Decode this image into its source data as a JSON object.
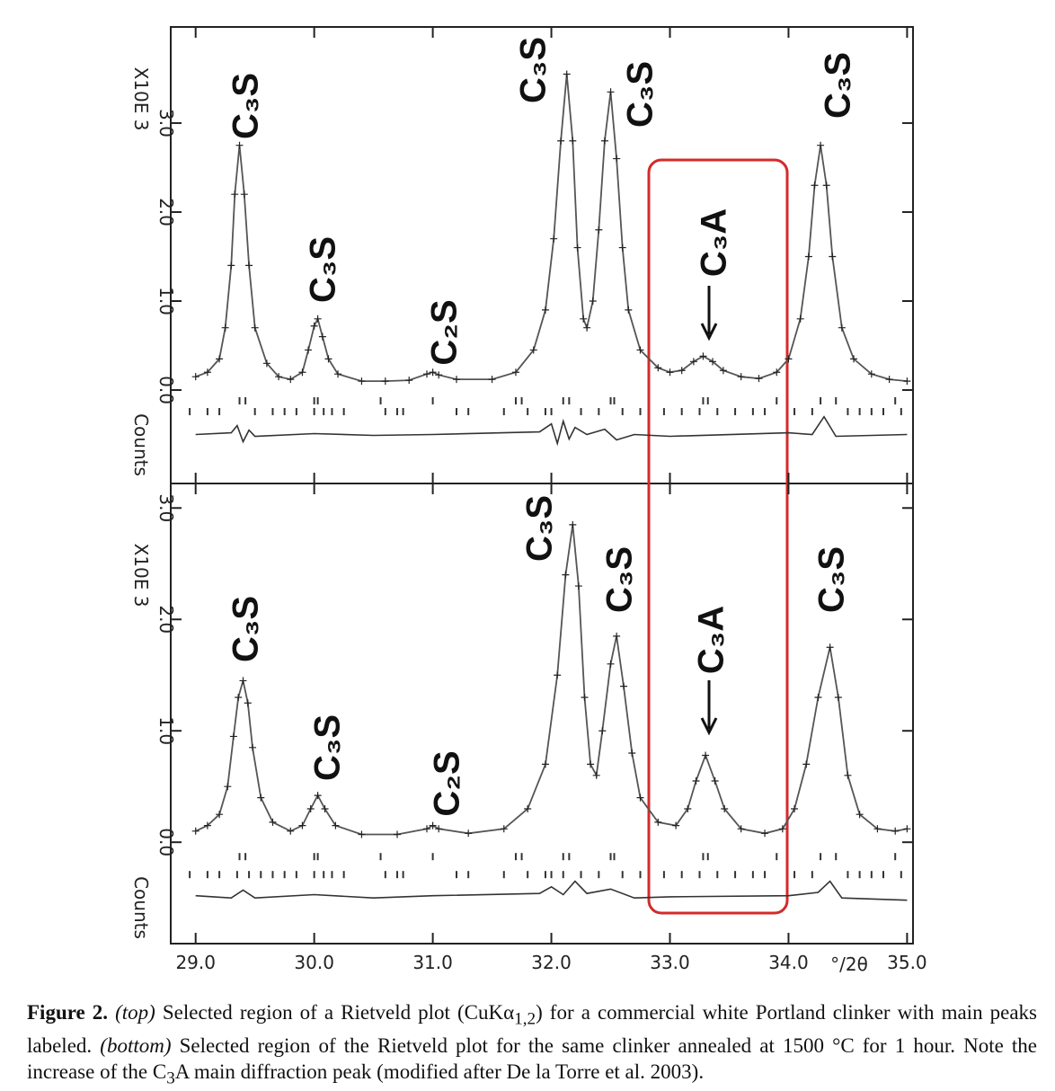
{
  "chart_data": [
    {
      "type": "line",
      "ylabel_multiplier": "X10E 3",
      "ylabel": "Counts",
      "xlim": [
        28.79,
        35.05
      ],
      "xticks": [
        29,
        30,
        31,
        32,
        33,
        34,
        35
      ],
      "ylim": [
        -1.05,
        4.08
      ],
      "yticks": [
        {
          "value": 0,
          "label": "0.0"
        },
        {
          "value": 1,
          "label": "1.0"
        },
        {
          "value": 2,
          "label": "2.0"
        },
        {
          "value": 3,
          "label": "3.0"
        }
      ],
      "series": [
        {
          "color": "#555555",
          "x": [
            29.0,
            29.1,
            29.2,
            29.25,
            29.3,
            29.33,
            29.37,
            29.41,
            29.45,
            29.5,
            29.6,
            29.7,
            29.8,
            29.9,
            29.95,
            30.0,
            30.03,
            30.07,
            30.12,
            30.2,
            30.4,
            30.6,
            30.8,
            30.95,
            31.0,
            31.05,
            31.2,
            31.5,
            31.7,
            31.85,
            31.95,
            32.02,
            32.08,
            32.13,
            32.18,
            32.22,
            32.27,
            32.3,
            32.35,
            32.4,
            32.45,
            32.5,
            32.55,
            32.6,
            32.65,
            32.75,
            32.9,
            33.0,
            33.1,
            33.2,
            33.28,
            33.36,
            33.45,
            33.6,
            33.75,
            33.9,
            34.0,
            34.1,
            34.17,
            34.22,
            34.27,
            34.32,
            34.37,
            34.45,
            34.55,
            34.7,
            34.85,
            35.0
          ],
          "values": [
            0.15,
            0.2,
            0.35,
            0.7,
            1.4,
            2.2,
            2.75,
            2.2,
            1.4,
            0.7,
            0.3,
            0.15,
            0.12,
            0.2,
            0.45,
            0.72,
            0.8,
            0.6,
            0.35,
            0.18,
            0.1,
            0.1,
            0.11,
            0.18,
            0.2,
            0.17,
            0.12,
            0.12,
            0.2,
            0.45,
            0.9,
            1.7,
            2.8,
            3.55,
            2.8,
            1.6,
            0.8,
            0.7,
            1.0,
            1.8,
            2.8,
            3.35,
            2.6,
            1.6,
            0.9,
            0.45,
            0.25,
            0.2,
            0.22,
            0.32,
            0.38,
            0.32,
            0.22,
            0.15,
            0.13,
            0.2,
            0.35,
            0.8,
            1.5,
            2.3,
            2.75,
            2.3,
            1.5,
            0.7,
            0.35,
            0.18,
            0.12,
            0.1
          ]
        },
        {
          "color": "#333333",
          "x": [
            29.0,
            29.3,
            29.35,
            29.4,
            29.45,
            29.5,
            30.0,
            30.5,
            31.0,
            31.9,
            32.0,
            32.05,
            32.1,
            32.15,
            32.2,
            32.3,
            32.45,
            32.55,
            32.7,
            33.0,
            34.0,
            34.2,
            34.25,
            34.3,
            34.4,
            35.0
          ],
          "values": [
            -0.5,
            -0.48,
            -0.4,
            -0.58,
            -0.45,
            -0.52,
            -0.49,
            -0.51,
            -0.5,
            -0.47,
            -0.38,
            -0.6,
            -0.35,
            -0.55,
            -0.42,
            -0.5,
            -0.44,
            -0.56,
            -0.5,
            -0.52,
            -0.48,
            -0.5,
            -0.4,
            -0.3,
            -0.52,
            -0.5
          ]
        }
      ],
      "reflections": [
        [
          29.37,
          29.42,
          30.0,
          30.03,
          30.56,
          31.0,
          31.7,
          31.75,
          32.1,
          32.15,
          32.5,
          32.53,
          33.28,
          33.32,
          33.9,
          34.27,
          34.4,
          34.9
        ],
        [
          28.95,
          29.1,
          29.2,
          29.5,
          29.65,
          29.75,
          29.85,
          30.0,
          30.08,
          30.15,
          30.25,
          30.6,
          30.7,
          30.75,
          31.2,
          31.3,
          31.6,
          31.8,
          31.95,
          32.0,
          32.25,
          32.4,
          32.6,
          32.75,
          32.95,
          33.1,
          33.25,
          33.4,
          33.55,
          33.7,
          33.8,
          34.05,
          34.2,
          34.5,
          34.6,
          34.7,
          34.8,
          34.95
        ]
      ],
      "annotations": [
        "C₃S",
        "C₃S",
        "C₂S",
        "C₃S",
        "C₃S",
        "C₃A",
        "C₃S"
      ]
    },
    {
      "type": "line",
      "ylabel_multiplier": "X10E 3",
      "ylabel": "Counts",
      "xlabel": "°/2θ",
      "xlim": [
        28.79,
        35.05
      ],
      "xticks": [
        {
          "value": 29,
          "label": "29.0"
        },
        {
          "value": 30,
          "label": "30.0"
        },
        {
          "value": 31,
          "label": "31.0"
        },
        {
          "value": 32,
          "label": "32.0"
        },
        {
          "value": 33,
          "label": "33.0"
        },
        {
          "value": 34,
          "label": "34.0"
        },
        {
          "value": 35,
          "label": "35.0"
        }
      ],
      "ylim": [
        -0.91,
        3.22
      ],
      "yticks": [
        {
          "value": 0,
          "label": "0.0"
        },
        {
          "value": 1,
          "label": "1.0"
        },
        {
          "value": 2,
          "label": "2.0"
        },
        {
          "value": 3,
          "label": "3.0"
        }
      ],
      "series": [
        {
          "color": "#555555",
          "x": [
            29.0,
            29.1,
            29.2,
            29.27,
            29.32,
            29.36,
            29.4,
            29.44,
            29.48,
            29.55,
            29.65,
            29.8,
            29.9,
            29.97,
            30.03,
            30.09,
            30.18,
            30.4,
            30.7,
            30.95,
            31.0,
            31.05,
            31.3,
            31.6,
            31.8,
            31.95,
            32.05,
            32.12,
            32.18,
            32.23,
            32.28,
            32.33,
            32.38,
            32.43,
            32.5,
            32.55,
            32.61,
            32.68,
            32.75,
            32.9,
            33.05,
            33.15,
            33.22,
            33.3,
            33.38,
            33.46,
            33.6,
            33.8,
            33.95,
            34.05,
            34.15,
            34.25,
            34.35,
            34.42,
            34.5,
            34.6,
            34.75,
            34.9,
            35.0
          ],
          "values": [
            0.1,
            0.15,
            0.25,
            0.5,
            0.95,
            1.3,
            1.45,
            1.25,
            0.85,
            0.4,
            0.18,
            0.1,
            0.15,
            0.3,
            0.42,
            0.3,
            0.15,
            0.07,
            0.07,
            0.12,
            0.15,
            0.12,
            0.08,
            0.12,
            0.3,
            0.7,
            1.5,
            2.4,
            2.85,
            2.3,
            1.3,
            0.7,
            0.6,
            1.0,
            1.6,
            1.85,
            1.4,
            0.8,
            0.4,
            0.18,
            0.15,
            0.3,
            0.55,
            0.78,
            0.55,
            0.3,
            0.12,
            0.08,
            0.12,
            0.3,
            0.7,
            1.3,
            1.75,
            1.3,
            0.6,
            0.25,
            0.12,
            0.1,
            0.12
          ]
        },
        {
          "color": "#333333",
          "x": [
            29.0,
            29.3,
            29.4,
            29.5,
            30.0,
            30.5,
            31.0,
            31.9,
            32.0,
            32.1,
            32.2,
            32.3,
            32.5,
            32.7,
            33.0,
            34.0,
            34.25,
            34.35,
            34.45,
            35.0
          ],
          "values": [
            -0.48,
            -0.5,
            -0.43,
            -0.5,
            -0.47,
            -0.5,
            -0.48,
            -0.46,
            -0.4,
            -0.47,
            -0.35,
            -0.46,
            -0.42,
            -0.5,
            -0.49,
            -0.48,
            -0.45,
            -0.35,
            -0.5,
            -0.52
          ]
        }
      ],
      "reflections": [
        [
          29.37,
          29.42,
          30.0,
          30.03,
          30.56,
          31.0,
          31.7,
          31.75,
          32.1,
          32.15,
          32.5,
          32.53,
          33.28,
          33.32,
          33.9,
          34.27,
          34.4,
          34.9
        ],
        [
          28.95,
          29.1,
          29.2,
          29.35,
          29.45,
          29.55,
          29.65,
          29.75,
          29.85,
          30.0,
          30.08,
          30.15,
          30.25,
          30.6,
          30.7,
          30.75,
          31.2,
          31.3,
          31.6,
          31.8,
          31.95,
          32.0,
          32.1,
          32.25,
          32.4,
          32.6,
          32.75,
          32.95,
          33.1,
          33.25,
          33.4,
          33.55,
          33.7,
          33.8,
          34.05,
          34.2,
          34.5,
          34.6,
          34.7,
          34.8,
          34.95
        ]
      ],
      "annotations": [
        "C₃S",
        "C₃S",
        "C₂S",
        "C₃S",
        "C₃S",
        "C₃A",
        "C₃S"
      ]
    }
  ],
  "caption": [
    "Figure 2.",
    "(top)",
    "Selected region of a Rietveld plot (CuKα",
    "1,2",
    ") for a commercial white Portland clinker with main peaks labeled.",
    "(bottom)",
    "Selected region of the Rietveld plot for the same clinker annealed at 1500 °C for 1 hour. Note the increase of the C",
    "3",
    "A main diffraction peak (modified after De la Torre et al. 2003)."
  ]
}
